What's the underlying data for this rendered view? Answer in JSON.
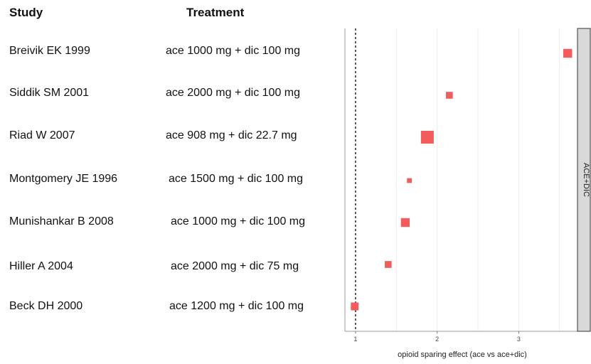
{
  "headers": {
    "study": "Study",
    "treatment": "Treatment"
  },
  "rows": [
    {
      "study": "Breivik EK 1999",
      "treatment": "ace 1000 mg + dic 100 mg"
    },
    {
      "study": "Siddik SM 2001",
      "treatment": "ace 2000 mg + dic 100 mg"
    },
    {
      "study": "Riad W 2007",
      "treatment": "ace 908 mg + dic 22.7 mg"
    },
    {
      "study": "Montgomery JE 1996",
      "treatment": "ace 1500 mg + dic 100 mg"
    },
    {
      "study": "Munishankar B 2008",
      "treatment": "ace 1000 mg + dic 100 mg"
    },
    {
      "study": "Hiller A 2004",
      "treatment": "ace 2000 mg + dic 75 mg"
    },
    {
      "study": "Beck DH 2000",
      "treatment": "ace 1200 mg + dic 100 mg"
    }
  ],
  "chart_data": {
    "type": "scatter",
    "xlabel": "opioid sparing effect (ace vs ace+dic)",
    "facet_label": "ACE+DIC",
    "xlim": [
      0.87,
      3.72
    ],
    "x_ticks": [
      "1",
      "2",
      "3"
    ],
    "x_tick_values": [
      1,
      2,
      3
    ],
    "reference_line": 1,
    "grid": true,
    "points": [
      {
        "study": "Breivik EK 1999",
        "x": 3.6,
        "weight": 0.6
      },
      {
        "study": "Siddik SM 2001",
        "x": 2.15,
        "weight": 0.4
      },
      {
        "study": "Riad W 2007",
        "x": 1.88,
        "weight": 1.0
      },
      {
        "study": "Montgomery JE 1996",
        "x": 1.66,
        "weight": 0.2
      },
      {
        "study": "Munishankar B 2008",
        "x": 1.61,
        "weight": 0.6
      },
      {
        "study": "Hiller A 2004",
        "x": 1.4,
        "weight": 0.4
      },
      {
        "study": "Beck DH 2000",
        "x": 0.99,
        "weight": 0.5
      }
    ],
    "marker_color": "#f25c5c"
  }
}
